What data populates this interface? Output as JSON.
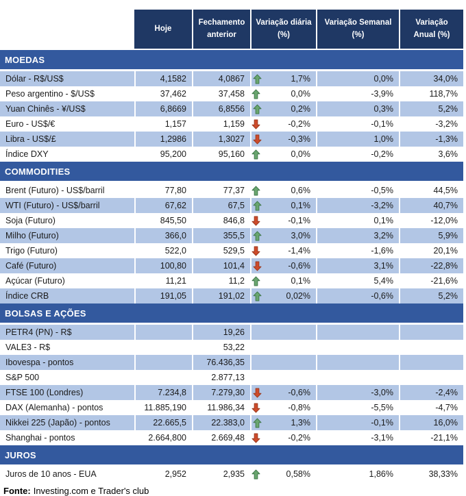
{
  "colors": {
    "header_bg": "#1F3864",
    "band_bg": "#33599E",
    "shaded_row": "#B2C6E5",
    "up_fill": "#6AA66F",
    "up_stroke": "#41794C",
    "down_fill": "#CE4B2B",
    "down_stroke": "#9C3A1F"
  },
  "chart_data": {
    "type": "table",
    "columns": [
      "",
      "Hoje",
      "Fechamento\nanterior",
      "Variação diária\n(%)",
      "Variação Semanal\n(%)",
      "Variação\nAnual (%)"
    ],
    "sections": [
      {
        "title": "MOEDAS",
        "rows": [
          {
            "label": "Dólar - R$/US$",
            "hoje": "4,1582",
            "fechamento": "4,0867",
            "arrow": "up",
            "diaria": "1,7%",
            "semanal": "0,0%",
            "anual": "34,0%",
            "shaded": true
          },
          {
            "label": "Peso argentino - $/US$",
            "hoje": "37,462",
            "fechamento": "37,458",
            "arrow": "up",
            "diaria": "0,0%",
            "semanal": "-3,9%",
            "anual": "118,7%",
            "shaded": false
          },
          {
            "label": "Yuan Chinês - ¥/US$",
            "hoje": "6,8669",
            "fechamento": "6,8556",
            "arrow": "up",
            "diaria": "0,2%",
            "semanal": "0,3%",
            "anual": "5,2%",
            "shaded": true
          },
          {
            "label": "Euro - US$/€",
            "hoje": "1,157",
            "fechamento": "1,159",
            "arrow": "down",
            "diaria": "-0,2%",
            "semanal": "-0,1%",
            "anual": "-3,2%",
            "shaded": false
          },
          {
            "label": "Libra - US$/£",
            "hoje": "1,2986",
            "fechamento": "1,3027",
            "arrow": "down",
            "diaria": "-0,3%",
            "semanal": "1,0%",
            "anual": "-1,3%",
            "shaded": true
          },
          {
            "label": "Índice DXY",
            "hoje": "95,200",
            "fechamento": "95,160",
            "arrow": "up",
            "diaria": "0,0%",
            "semanal": "-0,2%",
            "anual": "3,6%",
            "shaded": false
          }
        ]
      },
      {
        "title": "COMMODITIES",
        "rows": [
          {
            "label": "Brent (Futuro) - US$/barril",
            "hoje": "77,80",
            "fechamento": "77,37",
            "arrow": "up",
            "diaria": "0,6%",
            "semanal": "-0,5%",
            "anual": "44,5%",
            "shaded": false
          },
          {
            "label": "WTI (Futuro) - US$/barril",
            "hoje": "67,62",
            "fechamento": "67,5",
            "arrow": "up",
            "diaria": "0,1%",
            "semanal": "-3,2%",
            "anual": "40,7%",
            "shaded": true
          },
          {
            "label": "Soja (Futuro)",
            "hoje": "845,50",
            "fechamento": "846,8",
            "arrow": "down",
            "diaria": "-0,1%",
            "semanal": "0,1%",
            "anual": "-12,0%",
            "shaded": false
          },
          {
            "label": "Milho (Futuro)",
            "hoje": "366,0",
            "fechamento": "355,5",
            "arrow": "up",
            "diaria": "3,0%",
            "semanal": "3,2%",
            "anual": "5,9%",
            "shaded": true
          },
          {
            "label": "Trigo (Futuro)",
            "hoje": "522,0",
            "fechamento": "529,5",
            "arrow": "down",
            "diaria": "-1,4%",
            "semanal": "-1,6%",
            "anual": "20,1%",
            "shaded": false
          },
          {
            "label": "Café (Futuro)",
            "hoje": "100,80",
            "fechamento": "101,4",
            "arrow": "down",
            "diaria": "-0,6%",
            "semanal": "3,1%",
            "anual": "-22,8%",
            "shaded": true
          },
          {
            "label": "Açúcar (Futuro)",
            "hoje": "11,21",
            "fechamento": "11,2",
            "arrow": "up",
            "diaria": "0,1%",
            "semanal": "5,4%",
            "anual": "-21,6%",
            "shaded": false
          },
          {
            "label": "Índice CRB",
            "hoje": "191,05",
            "fechamento": "191,02",
            "arrow": "up",
            "diaria": "0,02%",
            "semanal": "-0,6%",
            "anual": "5,2%",
            "shaded": true
          }
        ]
      },
      {
        "title": "BOLSAS E AÇÕES",
        "rows": [
          {
            "label": "PETR4 (PN) - R$",
            "hoje": "",
            "fechamento": "19,26",
            "arrow": "",
            "diaria": "",
            "semanal": "",
            "anual": "",
            "shaded": true
          },
          {
            "label": "VALE3 - R$",
            "hoje": "",
            "fechamento": "53,22",
            "arrow": "",
            "diaria": "",
            "semanal": "",
            "anual": "",
            "shaded": false
          },
          {
            "label": "Ibovespa - pontos",
            "hoje": "",
            "fechamento": "76.436,35",
            "arrow": "",
            "diaria": "",
            "semanal": "",
            "anual": "",
            "shaded": true
          },
          {
            "label": "S&P 500",
            "hoje": "",
            "fechamento": "2.877,13",
            "arrow": "",
            "diaria": "",
            "semanal": "",
            "anual": "",
            "shaded": false
          },
          {
            "label": "FTSE 100 (Londres)",
            "hoje": "7.234,8",
            "fechamento": "7.279,30",
            "arrow": "down",
            "diaria": "-0,6%",
            "semanal": "-3,0%",
            "anual": "-2,4%",
            "shaded": true
          },
          {
            "label": "DAX (Alemanha) - pontos",
            "hoje": "11.885,190",
            "fechamento": "11.986,34",
            "arrow": "down",
            "diaria": "-0,8%",
            "semanal": "-5,5%",
            "anual": "-4,7%",
            "shaded": false
          },
          {
            "label": "Nikkei 225 (Japão) - pontos",
            "hoje": "22.665,5",
            "fechamento": "22.383,0",
            "arrow": "up",
            "diaria": "1,3%",
            "semanal": "-0,1%",
            "anual": "16,0%",
            "shaded": true
          },
          {
            "label": "Shanghai - pontos",
            "hoje": "2.664,800",
            "fechamento": "2.669,48",
            "arrow": "down",
            "diaria": "-0,2%",
            "semanal": "-3,1%",
            "anual": "-21,1%",
            "shaded": false
          }
        ]
      },
      {
        "title": "JUROS",
        "rows": [
          {
            "label": "Juros de 10 anos - EUA",
            "hoje": "2,952",
            "fechamento": "2,935",
            "arrow": "up",
            "diaria": "0,58%",
            "semanal": "1,86%",
            "anual": "38,33%",
            "shaded": false
          }
        ]
      }
    ]
  },
  "footer": {
    "label": "Fonte:",
    "text": "Investing.com e Trader's club"
  }
}
